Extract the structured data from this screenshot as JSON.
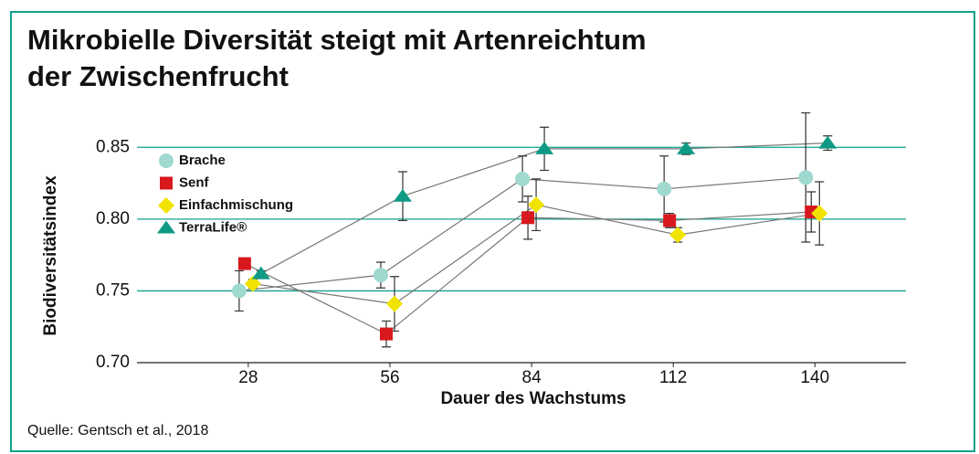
{
  "chart_data": {
    "type": "scatter",
    "title": [
      "Mikrobielle Diversität steigt mit Artenreichtum",
      "der Zwischenfrucht"
    ],
    "x_label": "Dauer des Wachstums",
    "y_label": "Biodiversitätsindex",
    "source": "Quelle: Gentsch et al., 2018",
    "x": [
      28,
      56,
      84,
      112,
      140
    ],
    "xlim": [
      6,
      158
    ],
    "xticks": [
      28,
      56,
      84,
      112,
      140
    ],
    "ylim": [
      0.7,
      0.875
    ],
    "yticks": [
      {
        "value": 0.7,
        "label": "0.70"
      },
      0.75,
      {
        "value": 0.8,
        "label": "0.80"
      },
      0.85
    ],
    "grid": true,
    "legend": "upper left",
    "series": [
      {
        "name": "Brache",
        "color": "#9fd9cf",
        "marker": "circle",
        "values": [
          0.75,
          0.761,
          0.828,
          0.821,
          0.829
        ],
        "errors": [
          0.014,
          0.009,
          0.016,
          0.023,
          0.045
        ]
      },
      {
        "name": "Senf",
        "color": "#d7191f",
        "marker": "square",
        "values": [
          0.769,
          0.72,
          0.801,
          0.799,
          0.805
        ],
        "errors": [
          0.003,
          0.009,
          0.015,
          0.005,
          0.014
        ]
      },
      {
        "name": "Einfachmischung",
        "color": "#f0e300",
        "marker": "diamond",
        "values": [
          0.755,
          0.741,
          0.81,
          0.789,
          0.804
        ],
        "errors": [
          0.003,
          0.019,
          0.018,
          0.005,
          0.022
        ]
      },
      {
        "name": "TerraLife®",
        "color": "#0e9a84",
        "marker": "triangle",
        "values": [
          0.762,
          0.816,
          0.849,
          0.849,
          0.853
        ],
        "errors": [
          0.002,
          0.017,
          0.015,
          0.004,
          0.005
        ]
      }
    ]
  }
}
